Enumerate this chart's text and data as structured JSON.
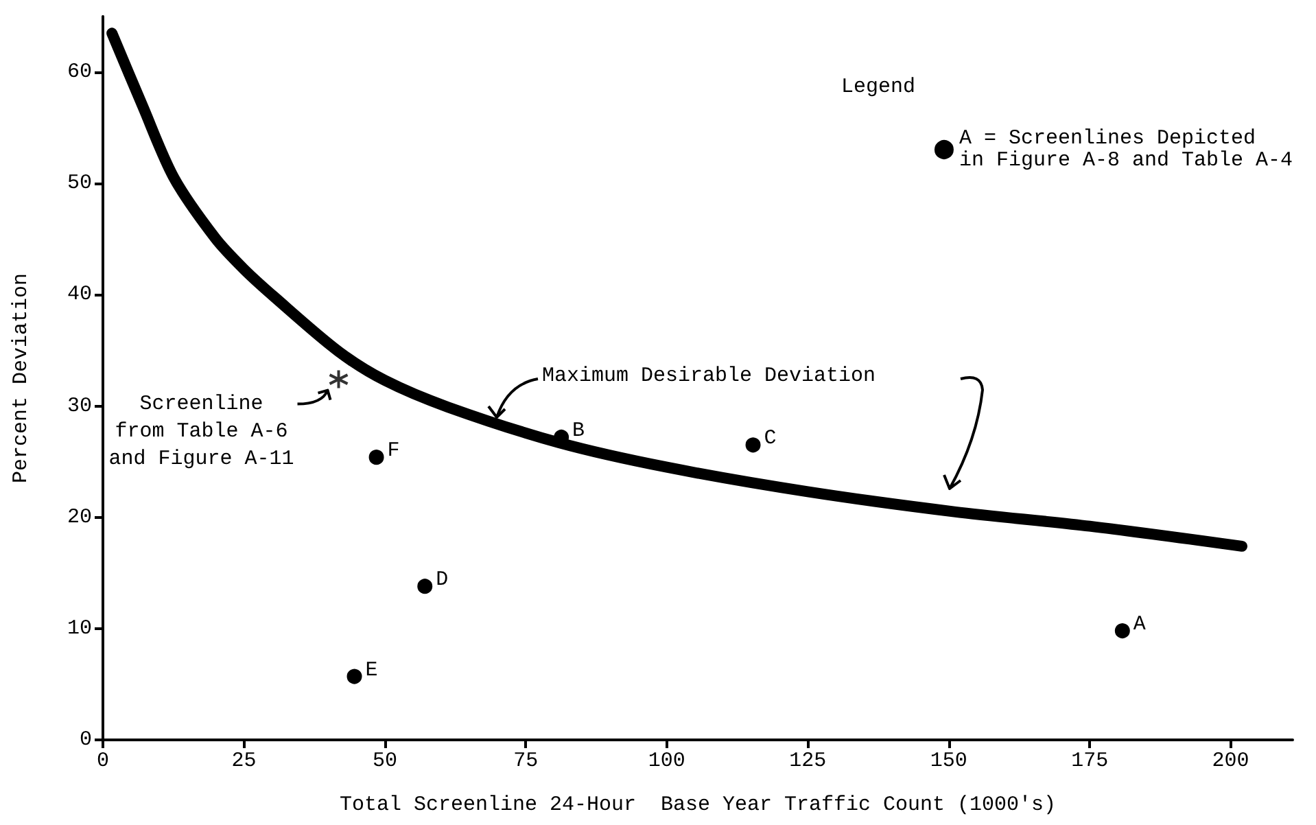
{
  "chart_data": {
    "type": "scatter",
    "xlabel": "Total Screenline 24-Hour  Base Year Traffic Count (1000's)",
    "ylabel": "Percent Deviation",
    "legend_title": "Legend",
    "xlim": [
      0,
      211
    ],
    "ylim": [
      0,
      65
    ],
    "xticks": [
      0,
      25,
      50,
      75,
      100,
      125,
      150,
      175,
      200
    ],
    "yticks": [
      0,
      10,
      20,
      30,
      40,
      50,
      60
    ],
    "grid": false,
    "legend": "top right",
    "series": [
      {
        "name": "Maximum Desirable Deviation",
        "type": "line",
        "color": "#000000",
        "marker": "none",
        "line_style": "solid",
        "x": [
          1.6,
          7,
          12.6,
          19.9,
          25,
          30.4,
          41.8,
          50,
          61.2,
          80.9,
          100,
          125,
          151,
          175,
          202
        ],
        "values": [
          63.5,
          57,
          50.5,
          45.1,
          42.3,
          39.8,
          34.9,
          32.3,
          29.9,
          26.7,
          24.5,
          22.3,
          20.5,
          19.2,
          17.4
        ]
      },
      {
        "name": "A = Screenlines Depicted\nin Figure A-8 and Table A-4",
        "color": "#000000",
        "marker": "circle",
        "x": [
          180.8,
          81.3,
          115.3,
          57.1,
          44.6,
          48.5
        ],
        "values": [
          9.8,
          27.2,
          26.5,
          13.8,
          5.7,
          25.4
        ]
      },
      {
        "color": "#000000",
        "marker": "cross",
        "x": [
          41.8
        ],
        "values": [
          32.4
        ]
      }
    ],
    "annotations": [
      {
        "text": "A",
        "x": 180.8,
        "y": 9.8
      },
      {
        "text": "B",
        "x": 81.3,
        "y": 27.2
      },
      {
        "text": "C",
        "x": 115.3,
        "y": 26.5
      },
      {
        "text": "D",
        "x": 57.1,
        "y": 13.8
      },
      {
        "text": "E",
        "x": 44.6,
        "y": 5.7
      },
      {
        "text": "F",
        "x": 48.5,
        "y": 25.4
      },
      {
        "text": "Screenline\nfrom Table A-6\nand Figure A-11",
        "x": 41.8,
        "y": 32.4
      }
    ]
  }
}
